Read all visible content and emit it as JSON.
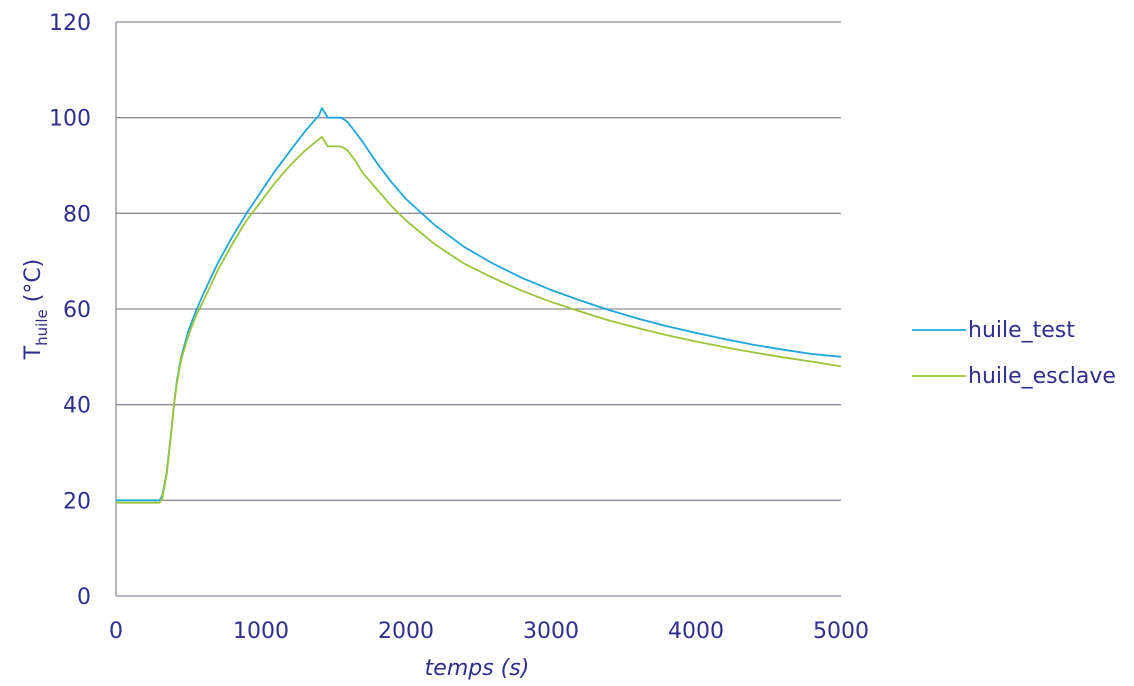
{
  "chart_data": {
    "type": "line",
    "title": "",
    "xlabel": "temps (s)",
    "ylabel_main": "T",
    "ylabel_sub": "huile",
    "ylabel_unit": " (°C)",
    "xlim": [
      0,
      5000
    ],
    "ylim": [
      0,
      120
    ],
    "x_ticks": [
      0,
      1000,
      2000,
      3000,
      4000,
      5000
    ],
    "y_ticks": [
      0,
      20,
      40,
      60,
      80,
      100,
      120
    ],
    "grid": "horizontal",
    "legend_position": "right",
    "colors": {
      "axis": "#8e8e9e",
      "grid": "#8e8e9e",
      "text": "#2e2e8f"
    },
    "series": [
      {
        "name": "huile_test",
        "color": "#1ea6db",
        "x": [
          0,
          300,
          320,
          350,
          380,
          400,
          420,
          450,
          500,
          550,
          600,
          700,
          800,
          900,
          1000,
          1100,
          1200,
          1300,
          1400,
          1420,
          1440,
          1460,
          1500,
          1550,
          1580,
          1600,
          1650,
          1700,
          1800,
          1900,
          2000,
          2200,
          2400,
          2600,
          2800,
          3000,
          3200,
          3400,
          3600,
          3800,
          4000,
          4200,
          4400,
          4600,
          4800,
          5000
        ],
        "values": [
          20,
          20,
          21,
          26,
          34,
          40,
          45,
          50,
          55.5,
          59.5,
          63,
          69.5,
          75,
          80,
          84.5,
          89,
          93,
          97,
          100.5,
          102,
          101,
          100,
          100,
          100,
          99.5,
          99,
          97,
          95,
          90.5,
          86.5,
          83,
          77.5,
          73,
          69.5,
          66.5,
          64,
          61.8,
          59.8,
          58,
          56.4,
          55,
          53.7,
          52.5,
          51.5,
          50.6,
          50
        ]
      },
      {
        "name": "huile_esclave",
        "color": "#9ac43a",
        "x": [
          0,
          300,
          320,
          350,
          380,
          400,
          420,
          450,
          500,
          550,
          600,
          700,
          800,
          900,
          1000,
          1100,
          1200,
          1300,
          1400,
          1420,
          1440,
          1460,
          1500,
          1550,
          1580,
          1600,
          1650,
          1700,
          1800,
          1900,
          2000,
          2200,
          2400,
          2600,
          2800,
          3000,
          3200,
          3400,
          3600,
          3800,
          4000,
          4200,
          4400,
          4600,
          4800,
          5000
        ],
        "values": [
          19.5,
          19.5,
          20.5,
          25.5,
          34,
          40,
          44.5,
          49.5,
          54.5,
          58.5,
          61.5,
          68,
          73.5,
          78.5,
          82.5,
          86.5,
          90,
          93,
          95.5,
          96,
          95,
          94,
          94,
          94,
          93.5,
          93,
          91,
          88.5,
          85,
          81.5,
          78.5,
          73.5,
          69.5,
          66.5,
          63.8,
          61.5,
          59.5,
          57.6,
          56,
          54.5,
          53.2,
          52,
          50.9,
          49.9,
          49,
          48
        ]
      }
    ]
  }
}
